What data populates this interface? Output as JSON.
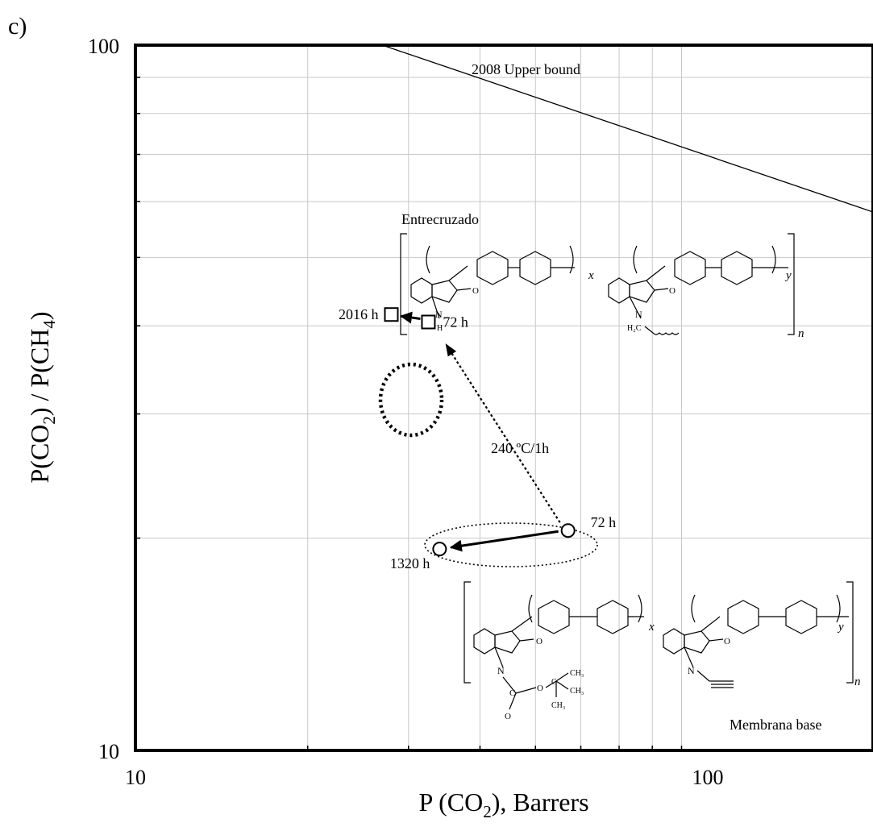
{
  "chart_data": {
    "type": "scatter",
    "panel_label": "c)",
    "xlabel_main": "P (CO",
    "xlabel_sub": "2",
    "xlabel_tail": "), Barrers",
    "ylabel": {
      "p1": "P(CO",
      "s1": "2",
      "p2": ") / P(CH",
      "s2": "4",
      "p3": ")"
    },
    "x_scale": "log",
    "y_scale": "log",
    "xlim": [
      10,
      200
    ],
    "ylim": [
      10,
      100
    ],
    "x_tick_labels": [
      {
        "value": 10,
        "label": "10"
      },
      {
        "value": 100,
        "label": "100"
      }
    ],
    "y_tick_labels": [
      {
        "value": 10,
        "label": "10"
      },
      {
        "value": 100,
        "label": "100"
      }
    ],
    "grid": true,
    "upper_bound": {
      "label": "2008 Upper bound",
      "points": [
        [
          27,
          100
        ],
        [
          200,
          58
        ]
      ]
    },
    "series": [
      {
        "marker": "square",
        "points": [
          {
            "x": 28,
            "y": 41.5,
            "label": "2016 h"
          },
          {
            "x": 32.5,
            "y": 40.5,
            "label": "72 h"
          }
        ]
      },
      {
        "marker": "circle",
        "points": [
          {
            "x": 57,
            "y": 20.5,
            "label": "72 h"
          },
          {
            "x": 34,
            "y": 19.3,
            "label": "1320 h"
          }
        ]
      }
    ],
    "annotations": [
      {
        "text": "240 ºC/1h"
      },
      {
        "text": "Entrecruzado"
      },
      {
        "text": "Membrana base"
      }
    ],
    "structure_labels": {
      "x": "x",
      "y": "y",
      "n": "n",
      "O": "O",
      "N": "N",
      "H": "H",
      "H2C": "H₂C",
      "C": "C",
      "CH3": "CH₃"
    }
  }
}
